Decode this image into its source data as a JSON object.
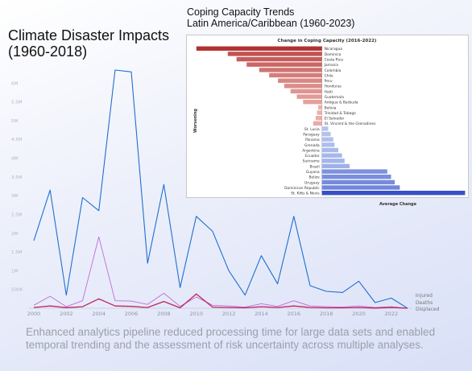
{
  "title": "Climate Disaster Impacts (1960-2018)",
  "inset_title": [
    "Coping Capacity Trends",
    "Latin America/Caribbean (1960-2023)"
  ],
  "caption": "Enhanced analytics pipeline reduced processing time for large data sets and enabled temporal trending and the assessment of risk uncertainty across multiple analyses.",
  "colors": {
    "injured": "#1f6fd1",
    "deaths": "#c16bd6",
    "displaced": "#c0245c"
  },
  "chart_data": [
    {
      "type": "line",
      "title": "Climate Disaster Impacts (1960-2018)",
      "x": [
        2000,
        2001,
        2002,
        2003,
        2004,
        2005,
        2006,
        2007,
        2008,
        2009,
        2010,
        2011,
        2012,
        2013,
        2014,
        2015,
        2016,
        2017,
        2018,
        2019,
        2020,
        2021,
        2022,
        2023
      ],
      "x_ticks": [
        "2000",
        "2002",
        "2004",
        "2006",
        "2008",
        "2010",
        "2012",
        "2014",
        "2016",
        "2018",
        "2020",
        "2022"
      ],
      "y_ticks": [
        "500K",
        "1M",
        "1.5M",
        "2M",
        "2.5M",
        "3M",
        "3.5M",
        "4M",
        "4.5M",
        "5M",
        "5.5M",
        "6M"
      ],
      "ylim": [
        0,
        6500000
      ],
      "series": [
        {
          "name": "Injured",
          "values": [
            1800000,
            3150000,
            350000,
            2950000,
            2600000,
            6350000,
            6300000,
            1200000,
            3300000,
            550000,
            2450000,
            2050000,
            1000000,
            350000,
            1400000,
            650000,
            2450000,
            600000,
            450000,
            420000,
            720000,
            150000,
            270000,
            0
          ]
        },
        {
          "name": "Deaths",
          "values": [
            80000,
            320000,
            40000,
            200000,
            1900000,
            200000,
            190000,
            100000,
            400000,
            50000,
            300000,
            80000,
            60000,
            30000,
            120000,
            50000,
            200000,
            60000,
            40000,
            30000,
            60000,
            20000,
            40000,
            0
          ]
        },
        {
          "name": "Displaced",
          "values": [
            20000,
            60000,
            15000,
            40000,
            250000,
            60000,
            50000,
            20000,
            180000,
            10000,
            380000,
            30000,
            20000,
            10000,
            40000,
            20000,
            60000,
            20000,
            10000,
            10000,
            20000,
            5000,
            20000,
            0
          ]
        }
      ],
      "legend": [
        "Injured",
        "Deaths",
        "Displaced"
      ],
      "legend_position": "bottom-right"
    },
    {
      "type": "bar",
      "orientation": "horizontal",
      "title": "Change in Coping Capacity (2016-2022)",
      "xlabel": "Average Change",
      "ylabel": "Worsening",
      "categories": [
        "Nicaragua",
        "Dominica",
        "Costa Rica",
        "Jamaica",
        "Colombia",
        "Chile",
        "Peru",
        "Honduras",
        "Haiti",
        "Guatemala",
        "Antigua & Barbuda",
        "Bolivia",
        "Trinidad & Tobago",
        "El Salvador",
        "St. Vincent & the Grenadines",
        "St. Lucia",
        "Paraguay",
        "Panama",
        "Grenada",
        "Argentina",
        "Ecuador",
        "Suriname",
        "Brazil",
        "Guyana",
        "Belize",
        "Uruguay",
        "Dominican Republic",
        "St. Kitts & Nevis"
      ],
      "values": [
        -1.0,
        -0.75,
        -0.68,
        -0.6,
        -0.5,
        -0.42,
        -0.35,
        -0.3,
        -0.25,
        -0.2,
        -0.15,
        -0.03,
        -0.04,
        -0.05,
        -0.07,
        0.05,
        0.07,
        0.09,
        0.1,
        0.13,
        0.16,
        0.18,
        0.22,
        0.52,
        0.55,
        0.58,
        0.62,
        1.14
      ],
      "xlim": [
        -1.05,
        1.15
      ]
    }
  ]
}
